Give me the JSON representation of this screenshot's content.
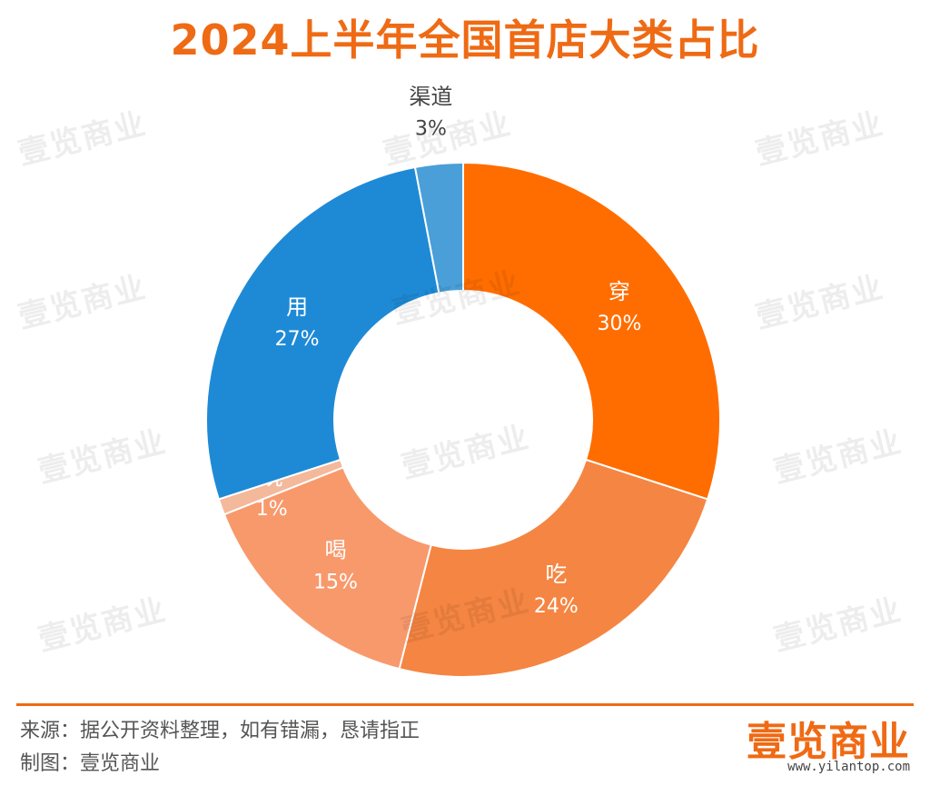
{
  "colors": {
    "accent": "#ef6a14",
    "series": [
      "#ff6d00",
      "#f58542",
      "#f8996c",
      "#f4b89a",
      "#1e8ad6",
      "#4a9fd8"
    ],
    "label_dark": "#444444",
    "label_light": "#ffffff"
  },
  "title": "2024上半年全国首店大类占比",
  "chart_data": {
    "type": "pie",
    "variant": "donut",
    "title": "2024上半年全国首店大类占比",
    "categories": [
      "穿",
      "吃",
      "喝",
      "玩",
      "用",
      "渠道"
    ],
    "values": [
      30,
      24,
      15,
      1,
      27,
      3
    ],
    "value_labels": [
      "30%",
      "24%",
      "15%",
      "1%",
      "27%",
      "3%"
    ],
    "start": "12 o'clock",
    "direction": "clockwise"
  },
  "watermark": "壹览商业",
  "footer": {
    "source": "来源：据公开资料整理，如有错漏，恳请指正",
    "maker": "制图：壹览商业",
    "logo": "壹览商业",
    "url": "www.yilantop.com"
  }
}
